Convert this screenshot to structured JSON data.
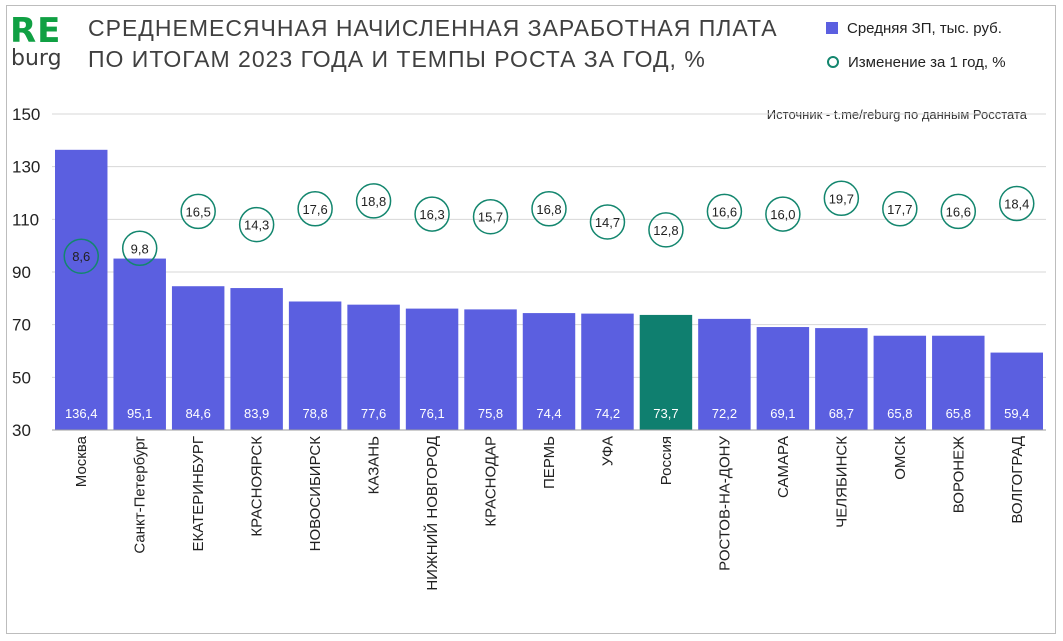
{
  "logo": {
    "re": "RE",
    "burg": "burg"
  },
  "chart_data": {
    "type": "bar",
    "title_line1": "СРЕДНЕМЕСЯЧНАЯ НАЧИСЛЕННАЯ ЗАРАБОТНАЯ ПЛАТА",
    "title_line2": "ПО ИТОГАМ 2023 ГОДА И ТЕМПЫ РОСТА ЗА ГОД, %",
    "source": "Источник - t.me/reburg по данным Росстата",
    "legend": [
      "Средняя ЗП, тыс. руб.",
      "Изменение за 1 год, %"
    ],
    "ylim": [
      30,
      150
    ],
    "yticks": [
      30,
      50,
      70,
      90,
      110,
      130,
      150
    ],
    "grid": true,
    "categories": [
      "Москва",
      "Санкт-Петербург",
      "ЕКАТЕРИНБУРГ",
      "КРАСНОЯРСК",
      "НОВОСИБИРСК",
      "КАЗАНЬ",
      "НИЖНИЙ НОВГОРОД",
      "КРАСНОДАР",
      "ПЕРМЬ",
      "УФА",
      "Россия",
      "РОСТОВ-НА-ДОНУ",
      "САМАРА",
      "ЧЕЛЯБИНСК",
      "ОМСК",
      "ВОРОНЕЖ",
      "ВОЛГОГРАД"
    ],
    "series": [
      {
        "name": "Средняя ЗП, тыс. руб.",
        "values": [
          136.4,
          95.1,
          84.6,
          83.9,
          78.8,
          77.6,
          76.1,
          75.8,
          74.4,
          74.2,
          73.7,
          72.2,
          69.1,
          68.7,
          65.8,
          65.8,
          59.4
        ],
        "labels": [
          "136,4",
          "95,1",
          "84,6",
          "83,9",
          "78,8",
          "77,6",
          "76,1",
          "75,8",
          "74,4",
          "74,2",
          "73,7",
          "72,2",
          "69,1",
          "68,7",
          "65,8",
          "65,8",
          "59,4"
        ]
      },
      {
        "name": "Изменение за 1 год, %",
        "values": [
          8.6,
          9.8,
          16.5,
          14.3,
          17.6,
          18.8,
          16.3,
          15.7,
          16.8,
          14.7,
          12.8,
          16.6,
          16.0,
          19.7,
          17.7,
          16.6,
          18.4
        ],
        "labels": [
          "8,6",
          "9,8",
          "16,5",
          "14,3",
          "17,6",
          "18,8",
          "16,3",
          "15,7",
          "16,8",
          "14,7",
          "12,8",
          "16,6",
          "16,0",
          "19,7",
          "17,7",
          "16,6",
          "18,4"
        ],
        "position_y": [
          96,
          99,
          113,
          108,
          114,
          117,
          112,
          111,
          114,
          109,
          106,
          113,
          112,
          118,
          114,
          113,
          116
        ]
      }
    ],
    "highlight": "Россия",
    "colors": {
      "bar": "#5b5fe0",
      "highlight": "#0f7f6f",
      "circle": "#13866e",
      "grid": "#d7d7d7",
      "logo": "#10a043"
    }
  }
}
